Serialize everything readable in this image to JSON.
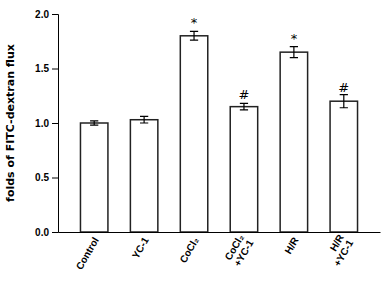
{
  "chart_data": {
    "type": "bar",
    "ylabel": "folds of FITC-dextran flux",
    "categories": [
      "Control",
      "YC-1",
      "CoCl₂",
      "CoCl₂\n+YC-1",
      "H/R",
      "H/R\n+YC-1"
    ],
    "values": [
      1.0,
      1.03,
      1.8,
      1.15,
      1.65,
      1.2
    ],
    "errors": [
      0.02,
      0.03,
      0.04,
      0.03,
      0.05,
      0.06
    ],
    "color": "#ffffff",
    "ylim": [
      0.0,
      2.0
    ],
    "yticks": [
      {
        "value": 0.0,
        "label": "0.0"
      },
      {
        "value": 0.5,
        "label": "0.5"
      },
      {
        "value": 1.0,
        "label": "1.0"
      },
      {
        "value": 1.5,
        "label": "1.5"
      },
      {
        "value": 2.0,
        "label": "2.0"
      }
    ],
    "grid": false,
    "annotations": [
      {
        "text": "*",
        "x": "CoCl₂",
        "y": 1.86
      },
      {
        "text": "#",
        "x": "CoCl₂\n+YC-1",
        "y": 1.2
      },
      {
        "text": "*",
        "x": "H/R",
        "y": 1.72
      },
      {
        "text": "#",
        "x": "H/R\n+YC-1",
        "y": 1.27
      }
    ]
  }
}
